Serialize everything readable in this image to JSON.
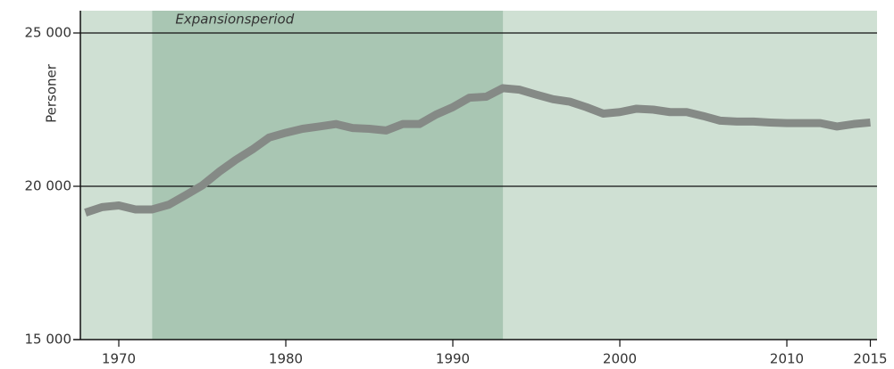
{
  "chart_data": {
    "type": "line",
    "y_label": "Personer",
    "annotation": {
      "text": "Expansionsperiod",
      "span": [
        1972,
        1993
      ]
    },
    "x": [
      1968,
      1969,
      1970,
      1971,
      1972,
      1973,
      1974,
      1975,
      1976,
      1977,
      1978,
      1979,
      1980,
      1981,
      1982,
      1983,
      1984,
      1985,
      1986,
      1987,
      1988,
      1989,
      1990,
      1991,
      1992,
      1993,
      1994,
      1995,
      1996,
      1997,
      1998,
      1999,
      2000,
      2001,
      2002,
      2003,
      2004,
      2005,
      2006,
      2007,
      2008,
      2009,
      2010,
      2011,
      2012,
      2013,
      2014,
      2015
    ],
    "series": [
      {
        "color": "#858a86",
        "values": [
          19140,
          19320,
          19375,
          19245,
          19245,
          19400,
          19710,
          20030,
          20470,
          20860,
          21200,
          21590,
          21745,
          21875,
          21950,
          22030,
          21900,
          21875,
          21820,
          22030,
          22030,
          22340,
          22580,
          22890,
          22920,
          23200,
          23150,
          22990,
          22840,
          22760,
          22580,
          22370,
          22420,
          22530,
          22500,
          22420,
          22420,
          22290,
          22140,
          22110,
          22110,
          22080,
          22060,
          22060,
          22060,
          21950,
          22030,
          22080
        ]
      }
    ],
    "xlim": [
      1967.7,
      2015.4
    ],
    "xticks": [
      1970,
      1980,
      1990,
      2000,
      2010,
      2015
    ],
    "ylim": [
      15000,
      25000
    ],
    "yticks": [
      {
        "value": 15000,
        "label": "15 000"
      },
      {
        "value": 20000,
        "label": "20 000"
      },
      {
        "value": 25000,
        "label": "25 000"
      }
    ],
    "grid": true,
    "background_color": "#cfe0d3",
    "span_color": "#a9c6b3"
  }
}
